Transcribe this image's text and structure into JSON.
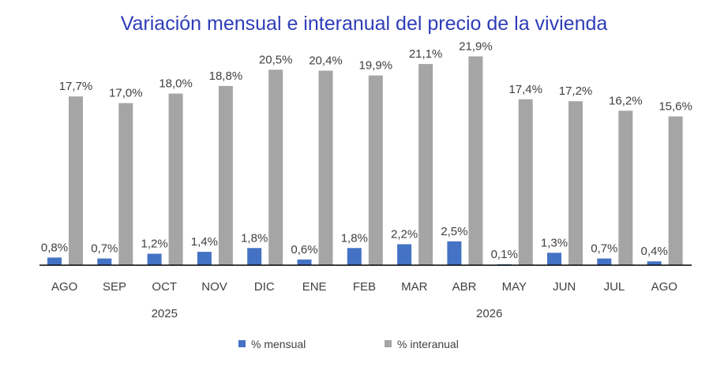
{
  "chart_data": {
    "type": "bar",
    "title": "Variación mensual e interanual del precio de la vivienda",
    "categories": [
      "AGO",
      "SEP",
      "OCT",
      "NOV",
      "DIC",
      "ENE",
      "FEB",
      "MAR",
      "ABR",
      "MAY",
      "JUN",
      "JUL",
      "AGO"
    ],
    "year_groups": [
      {
        "label": "2025",
        "categories": [
          "AGO",
          "SEP",
          "OCT",
          "NOV",
          "DIC"
        ]
      },
      {
        "label": "2026",
        "categories": [
          "ENE",
          "FEB",
          "MAR",
          "ABR",
          "MAY",
          "JUN",
          "JUL",
          "AGO"
        ]
      }
    ],
    "series": [
      {
        "name": "% mensual",
        "color": "#4472c4",
        "values": [
          0.8,
          0.7,
          1.2,
          1.4,
          1.8,
          0.6,
          1.8,
          2.2,
          2.5,
          0.1,
          1.3,
          0.7,
          0.4
        ],
        "labels": [
          "0,8%",
          "0,7%",
          "1,2%",
          "1,4%",
          "1,8%",
          "0,6%",
          "1,8%",
          "2,2%",
          "2,5%",
          "0,1%",
          "1,3%",
          "0,7%",
          "0,4%"
        ]
      },
      {
        "name": "% interanual",
        "color": "#a5a5a5",
        "values": [
          17.7,
          17.0,
          18.0,
          18.8,
          20.5,
          20.4,
          19.9,
          21.1,
          21.9,
          17.4,
          17.2,
          16.2,
          15.6
        ],
        "labels": [
          "17,7%",
          "17,0%",
          "18,0%",
          "18,8%",
          "20,5%",
          "20,4%",
          "19,9%",
          "21,1%",
          "21,9%",
          "17,4%",
          "17,2%",
          "16,2%",
          "15,6%"
        ]
      }
    ],
    "ylim": [
      0,
      25
    ],
    "grid": false,
    "legend_position": "bottom",
    "title_color": "#2e3db8"
  }
}
